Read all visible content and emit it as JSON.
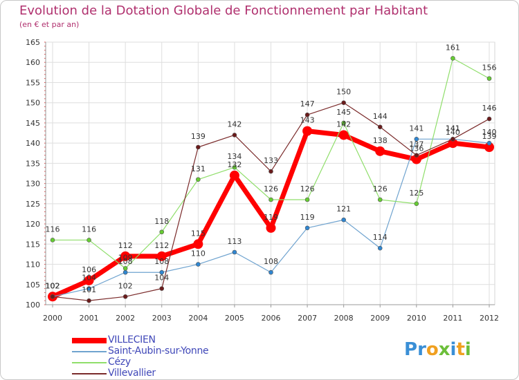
{
  "title": "Evolution de la Dotation Globale de Fonctionnement par Habitant",
  "subtitle": "(en € et par an)",
  "logo_text": "Proxiti",
  "chart_data": {
    "type": "line",
    "title": "Evolution de la Dotation Globale de Fonctionnement par Habitant",
    "ylabel": "(en € et par an)",
    "xlabel": "",
    "x": [
      "2000",
      "2001",
      "2002",
      "2003",
      "2004",
      "2005",
      "2006",
      "2007",
      "2008",
      "2009",
      "2010",
      "2011",
      "2012"
    ],
    "ylim": [
      100,
      165
    ],
    "yticks": [
      100,
      105,
      110,
      115,
      120,
      125,
      130,
      135,
      140,
      145,
      150,
      155,
      160,
      165
    ],
    "grid": true,
    "legend_position": "bottom-left",
    "series": [
      {
        "name": "VILLECIEN",
        "color": "#ff0000",
        "marker": "#ff0000",
        "width": 7,
        "markerSize": 7,
        "values": [
          102,
          106,
          112,
          112,
          115,
          132,
          119,
          143,
          142,
          138,
          136,
          140,
          139
        ],
        "labels": [
          "102",
          "106",
          "112",
          "112",
          "115",
          "132",
          "119",
          "143",
          "142",
          "138",
          "136",
          "140",
          "139"
        ]
      },
      {
        "name": "Saint-Aubin-sur-Yonne",
        "color": "#6fa3cf",
        "marker": "#2f86d1",
        "width": 1.2,
        "markerSize": 3,
        "values": [
          102,
          104,
          108,
          108,
          110,
          113,
          108,
          119,
          121,
          114,
          141,
          141,
          140
        ],
        "labels": [
          "102",
          "104",
          "108",
          "108",
          "110",
          "113",
          "108",
          "119",
          "121",
          "114",
          "141",
          "141",
          "140"
        ]
      },
      {
        "name": "Cézy",
        "color": "#8fde6a",
        "marker": "#66cc33",
        "width": 1.2,
        "markerSize": 3,
        "values": [
          116,
          116,
          109,
          118,
          131,
          134,
          126,
          126,
          145,
          126,
          125,
          161,
          156
        ],
        "labels": [
          "116",
          "116",
          "109",
          "118",
          "131",
          "134",
          "126",
          "126",
          "145",
          "126",
          "125",
          "161",
          "156"
        ]
      },
      {
        "name": "Villevallier",
        "color": "#7a2a2a",
        "marker": "#6b1b1b",
        "width": 1.2,
        "markerSize": 3,
        "values": [
          102,
          101,
          102,
          104,
          139,
          142,
          133,
          147,
          150,
          144,
          137,
          141,
          146
        ],
        "labels": [
          "102",
          "101",
          "102",
          "104",
          "139",
          "142",
          "133",
          "147",
          "150",
          "144",
          "137",
          "141",
          "146"
        ]
      }
    ]
  }
}
